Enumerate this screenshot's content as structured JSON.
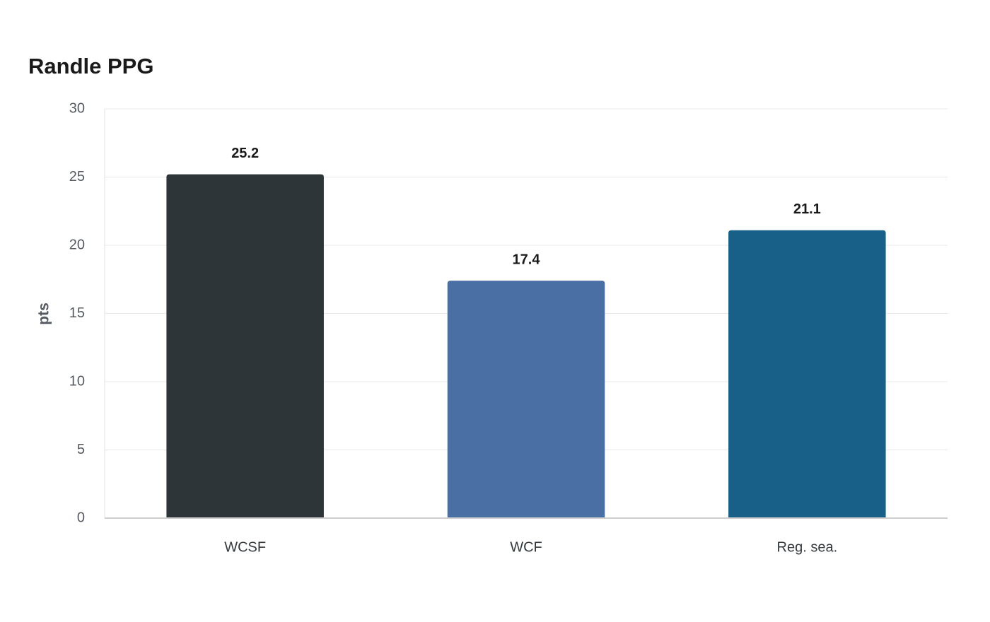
{
  "chart_data": {
    "type": "bar",
    "title": "Randle PPG",
    "y_label": "pts",
    "categories": [
      "WCSF",
      "WCF",
      "Reg. sea."
    ],
    "values": [
      25.2,
      17.4,
      21.1
    ],
    "colors": [
      "#2e3538",
      "#4a6fa5",
      "#186088"
    ],
    "ylim": [
      0,
      30
    ],
    "yticks": [
      0,
      5,
      10,
      15,
      20,
      25,
      30
    ],
    "grid": true
  }
}
